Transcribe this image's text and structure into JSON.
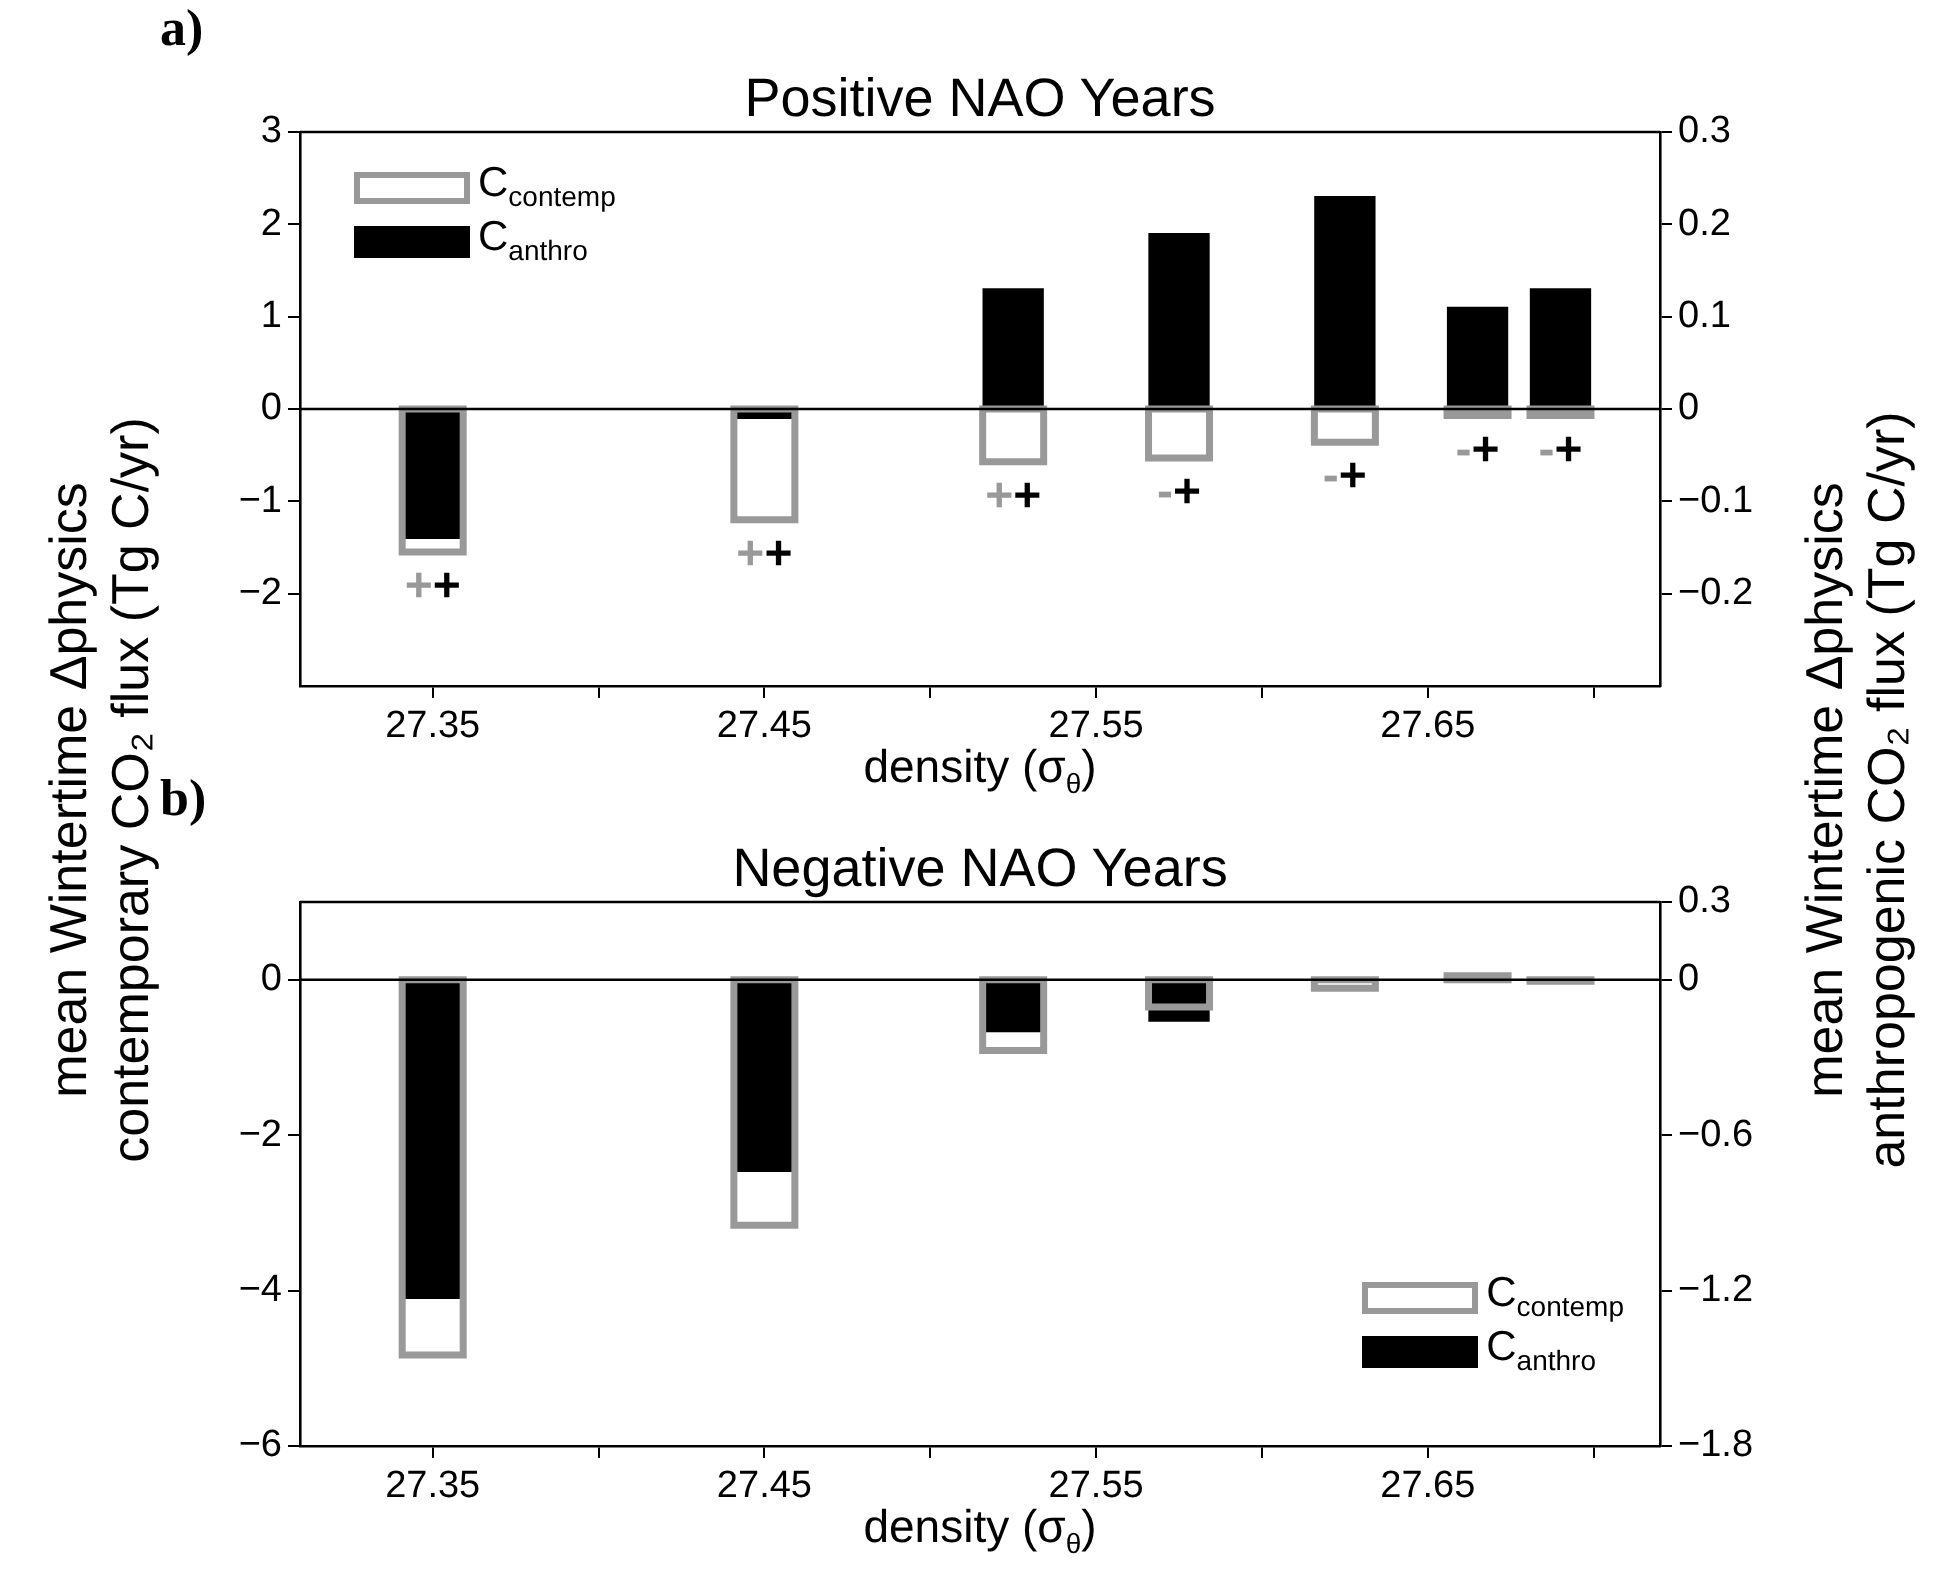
{
  "chart_data": [
    {
      "type": "bar",
      "title": "Positive NAO Years",
      "xlabel": "density (σ$_{θ}$)",
      "ylabel": "mean Wintertime Δphysics\ncontemporary CO₂ flux (Tg C/yr)",
      "y2label": "mean Wintertime Δphysics\nanthropogenic CO₂ flux (Tg C/yr)",
      "x": [
        27.35,
        27.45,
        27.525,
        27.575,
        27.625,
        27.665,
        27.69
      ],
      "series": [
        {
          "name": "C$_{contemp}$",
          "color": "#999999",
          "values": [
            -1.55,
            -1.2,
            -0.57,
            -0.53,
            -0.36,
            -0.07,
            -0.07
          ]
        },
        {
          "name": "C$_{anthro}$",
          "color": "#000000",
          "axis": "y2",
          "values": [
            -0.14,
            -0.01,
            0.13,
            0.19,
            0.23,
            0.11,
            0.13
          ]
        }
      ],
      "xlim": [
        27.31,
        27.72
      ],
      "xticks": [
        27.35,
        {
          "value": 27.4,
          "label": null
        },
        27.45,
        {
          "value": 27.5,
          "label": null
        },
        27.55,
        {
          "value": 27.6,
          "label": null
        },
        27.65,
        {
          "value": 27.7,
          "label": null
        }
      ],
      "ylim": [
        -3,
        3
      ],
      "yticks": [
        -2,
        -1,
        0,
        1,
        2,
        3
      ],
      "y2lim": [
        -0.3,
        0.3
      ],
      "y2ticks": [
        -0.2,
        -0.1,
        0,
        0.1,
        0.2,
        0.3
      ],
      "ref_lines": [
        {
          "axis": "y",
          "value": 0
        }
      ],
      "legend": "top left",
      "annotations": [
        "a)",
        {
          "text": "++",
          "x": 27.35,
          "y": -1.55
        },
        {
          "text": "++",
          "x": 27.45,
          "y": -1.2
        },
        {
          "text": "++",
          "x": 27.525,
          "y": -0.57
        },
        {
          "text": "-+",
          "x": 27.575,
          "y": -0.53
        },
        {
          "text": "-+",
          "x": 27.625,
          "y": -0.36
        },
        {
          "text": "-+",
          "x": 27.665,
          "y": -0.07
        },
        {
          "text": "-+",
          "x": 27.69,
          "y": -0.07
        }
      ]
    },
    {
      "type": "bar",
      "title": "Negative NAO Years",
      "xlabel": "density (σ$_{θ}$)",
      "x": [
        27.35,
        27.45,
        27.525,
        27.575,
        27.625,
        27.665,
        27.69
      ],
      "series": [
        {
          "name": "C$_{contemp}$",
          "color": "#999999",
          "values": [
            -4.83,
            -3.16,
            -0.91,
            -0.35,
            -0.11,
            0.05,
            -0.02
          ]
        },
        {
          "name": "C$_{anthro}$",
          "color": "#000000",
          "axis": "y2",
          "values": [
            -1.23,
            -0.74,
            -0.2,
            -0.16,
            -0.01,
            0,
            0
          ]
        }
      ],
      "xlim": [
        27.31,
        27.72
      ],
      "xticks": [
        27.35,
        {
          "value": 27.4,
          "label": null
        },
        27.45,
        {
          "value": 27.5,
          "label": null
        },
        27.55,
        {
          "value": 27.6,
          "label": null
        },
        27.65,
        {
          "value": 27.7,
          "label": null
        }
      ],
      "ylim": [
        -6,
        1
      ],
      "yticks": [
        -6,
        -4,
        -2,
        0
      ],
      "y2lim": [
        -1.8,
        0.3
      ],
      "y2ticks": [
        -1.8,
        -1.2,
        -0.6,
        0,
        0.3
      ],
      "ref_lines": [
        {
          "axis": "y",
          "value": 0
        }
      ],
      "legend": "bottom right",
      "annotations": [
        "b)"
      ]
    }
  ]
}
